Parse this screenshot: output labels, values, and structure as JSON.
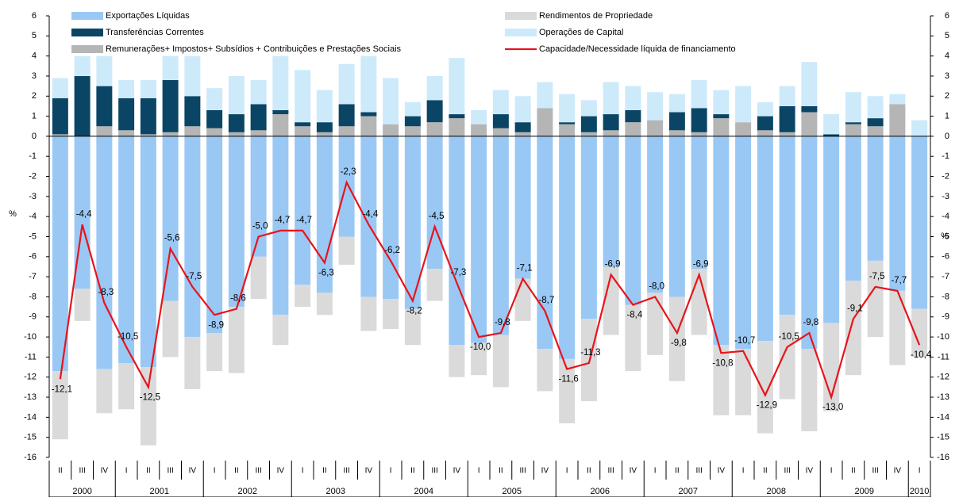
{
  "chart_data": {
    "type": "stacked_bar_line",
    "y_label": "%",
    "y2_label": "%",
    "categories": [
      "II",
      "III",
      "IV",
      "I",
      "II",
      "III",
      "IV",
      "I",
      "II",
      "III",
      "IV",
      "I",
      "II",
      "III",
      "IV",
      "I",
      "II",
      "III",
      "IV",
      "I",
      "II",
      "III",
      "IV",
      "I",
      "II",
      "III",
      "IV",
      "I",
      "II",
      "III",
      "IV",
      "I",
      "II",
      "III",
      "IV",
      "I",
      "II",
      "III",
      "IV",
      "I"
    ],
    "x_groups": [
      {
        "label": "2000",
        "size": 3
      },
      {
        "label": "2001",
        "size": 4
      },
      {
        "label": "2002",
        "size": 4
      },
      {
        "label": "2003",
        "size": 4
      },
      {
        "label": "2004",
        "size": 4
      },
      {
        "label": "2005",
        "size": 4
      },
      {
        "label": "2006",
        "size": 4
      },
      {
        "label": "2007",
        "size": 4
      },
      {
        "label": "2008",
        "size": 4
      },
      {
        "label": "2009",
        "size": 4
      },
      {
        "label": "2010",
        "size": 1
      }
    ],
    "series": [
      {
        "name": "Exportações Líquidas",
        "color": "#99c8f5",
        "values": [
          -11.7,
          -7.6,
          -11.6,
          -11.3,
          -11.5,
          -8.2,
          -10.0,
          -9.8,
          -8.5,
          -6.0,
          -8.9,
          -7.4,
          -7.8,
          -5.0,
          -8.0,
          -8.1,
          -8.6,
          -6.6,
          -10.4,
          -10.3,
          -9.9,
          -7.1,
          -10.6,
          -11.1,
          -9.1,
          -6.5,
          -8.4,
          -7.8,
          -8.0,
          -6.6,
          -10.4,
          -10.6,
          -10.2,
          -8.9,
          -10.6,
          -9.3,
          -7.2,
          -6.2,
          -7.7,
          -8.6
        ]
      },
      {
        "name": "Remunerações+ Impostos+ Subsídios + Contribuições e Prestações Sociais",
        "color": "#b5b5b5",
        "values": [
          0.1,
          0,
          0.5,
          0.3,
          0.1,
          0.2,
          0.5,
          0.4,
          0.2,
          0.3,
          1.1,
          0.5,
          0.2,
          0.5,
          1.0,
          0.6,
          0.5,
          0.7,
          0.9,
          0.6,
          0.4,
          0.2,
          1.4,
          0.6,
          0.2,
          0.3,
          0.7,
          0.8,
          0.3,
          0.2,
          0.9,
          0.7,
          0.3,
          0.2,
          1.2,
          0,
          0.6,
          0.5,
          1.6,
          0
        ]
      },
      {
        "name": "Transferências Correntes",
        "color": "#0b4566",
        "values": [
          1.8,
          3.0,
          2.0,
          1.6,
          1.8,
          2.6,
          1.5,
          0.9,
          0.9,
          1.3,
          0.2,
          0.2,
          0.5,
          1.1,
          0.2,
          0,
          0.5,
          1.1,
          0.2,
          0,
          0.7,
          0.5,
          0,
          0.1,
          0.8,
          0.8,
          0.6,
          0,
          0.9,
          1.2,
          0.2,
          0,
          0.7,
          1.3,
          0.3,
          0.1,
          0.1,
          0.4,
          0,
          0
        ]
      },
      {
        "name": "Rendimentos de Propriedade",
        "color": "#dadada",
        "values": [
          -3.4,
          -1.6,
          -2.2,
          -2.3,
          -3.9,
          -2.8,
          -2.6,
          -1.9,
          -3.3,
          -2.1,
          -1.5,
          -1.1,
          -1.1,
          -1.4,
          -1.7,
          -1.5,
          -1.8,
          -1.6,
          -1.6,
          -1.6,
          -2.6,
          -2.1,
          -2.1,
          -3.2,
          -4.1,
          -3.4,
          -3.3,
          -3.1,
          -4.2,
          -3.3,
          -3.5,
          -3.3,
          -4.6,
          -4.2,
          -4.1,
          -4.4,
          -4.7,
          -3.8,
          -3.7,
          -2.4
        ]
      },
      {
        "name": "Operações de Capital",
        "color": "#cdeafb",
        "values": [
          1.0,
          1.0,
          1.5,
          0.9,
          0.9,
          1.2,
          2.0,
          1.1,
          1.9,
          1.2,
          2.7,
          2.6,
          1.6,
          2.0,
          2.8,
          2.3,
          0.7,
          1.2,
          2.8,
          0.7,
          1.2,
          1.3,
          1.3,
          1.4,
          0.8,
          1.6,
          1.2,
          1.4,
          0.9,
          1.4,
          1.2,
          1.8,
          0.7,
          1.0,
          2.2,
          1.0,
          1.5,
          1.1,
          0.5,
          0.8
        ]
      }
    ],
    "line": {
      "name": "Capacidade/Necessidade líquida de financiamento",
      "color": "#e8141b",
      "values": [
        -12.1,
        -4.4,
        -8.3,
        -10.5,
        -12.5,
        -5.6,
        -7.5,
        -8.9,
        -8.6,
        -5.0,
        -4.7,
        -4.7,
        -6.3,
        -2.3,
        -4.4,
        -6.2,
        -8.2,
        -4.5,
        -7.3,
        -10.0,
        -9.8,
        -7.1,
        -8.7,
        -11.6,
        -11.3,
        -6.9,
        -8.4,
        -8.0,
        -9.8,
        -6.9,
        -10.8,
        -10.7,
        -12.9,
        -10.5,
        -9.8,
        -13.0,
        -9.1,
        -7.5,
        -7.7,
        -10.4
      ],
      "value_labels": [
        "-12,1",
        "-4,4",
        "-8,3",
        "-10,5",
        "-12,5",
        "-5,6",
        "-7,5",
        "-8,9",
        "-8,6",
        "-5,0",
        "-4,7",
        "-4,7",
        "-6,3",
        "-2,3",
        "-4,4",
        "-6,2",
        "-8,2",
        "-4,5",
        "-7,3",
        "-10,0",
        "-9,8",
        "-7,1",
        "-8,7",
        "-11,6",
        "-11,3",
        "-6,9",
        "-8,4",
        "-8,0",
        "-9,8",
        "-6,9",
        "-10,8",
        "-10,7",
        "-12,9",
        "-10,5",
        "-9,8",
        "-13,0",
        "-9,1",
        "-7,5",
        "-7,7",
        "-10,4"
      ]
    },
    "ylim": [
      -16,
      6
    ],
    "yticks": [
      -16,
      -15,
      -14,
      -13,
      -12,
      -11,
      -10,
      -9,
      -8,
      -7,
      -6,
      -5,
      -4,
      -3,
      -2,
      -1,
      0,
      1,
      2,
      3,
      4,
      5,
      6
    ],
    "y2lim": [
      -16,
      6
    ],
    "y2ticks": [
      -16,
      -15,
      -14,
      -13,
      -12,
      -11,
      -10,
      -9,
      -8,
      -7,
      -6,
      -5,
      -4,
      -3,
      -2,
      -1,
      0,
      1,
      2,
      3,
      4,
      5,
      6
    ]
  }
}
